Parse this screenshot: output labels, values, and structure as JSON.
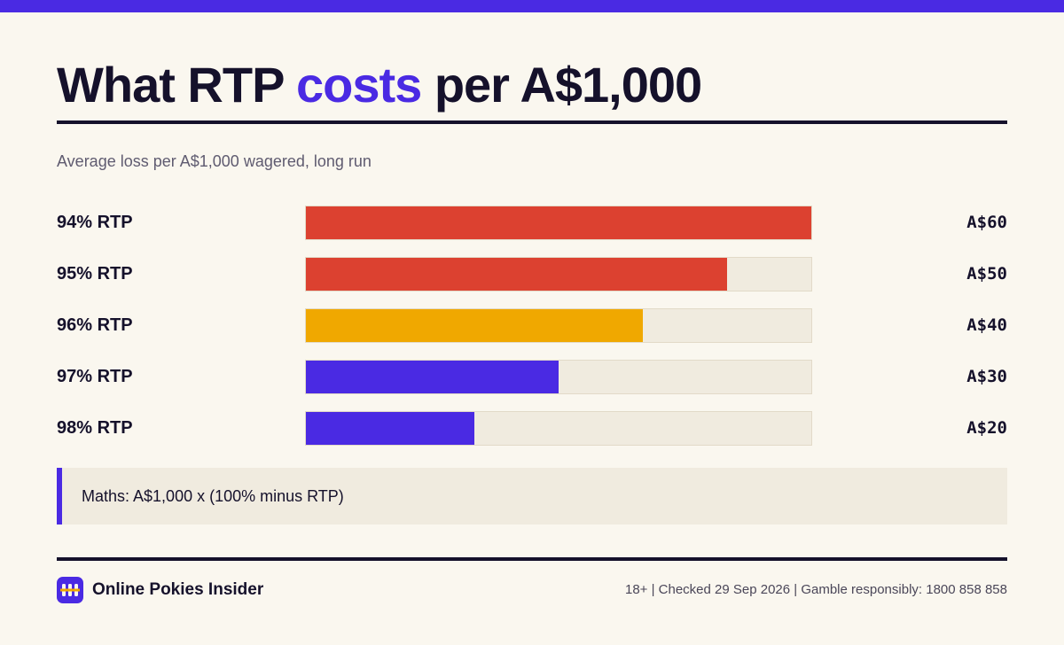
{
  "header": {
    "title_before": "What RTP ",
    "title_accent": "costs",
    "title_after": " per A$1,000",
    "subtitle": "Average loss per A$1,000 wagered, long run"
  },
  "colors": {
    "accent": "#4a2ae3",
    "red": "#dc4130",
    "amber": "#f0a800",
    "track": "#f0ebdf"
  },
  "chart_data": {
    "type": "bar",
    "orientation": "horizontal",
    "title": "What RTP costs per A$1,000",
    "subtitle": "Average loss per A$1,000 wagered, long run",
    "categories": [
      "94% RTP",
      "95% RTP",
      "96% RTP",
      "97% RTP",
      "98% RTP"
    ],
    "values": [
      60,
      50,
      40,
      30,
      20
    ],
    "value_labels": [
      "A$60",
      "A$50",
      "A$40",
      "A$30",
      "A$20"
    ],
    "bar_colors": [
      "#dc4130",
      "#dc4130",
      "#f0a800",
      "#4a2ae3",
      "#4a2ae3"
    ],
    "xlim": [
      0,
      60
    ],
    "grid": false,
    "legend": "none"
  },
  "note": {
    "text": "Maths: A$1,000 x (100% minus RTP)"
  },
  "footer": {
    "brand": "Online Pokies Insider",
    "logo_icon": "slot-reels-icon",
    "info": "18+ | Checked 29 Sep 2026 | Gamble responsibly: 1800 858 858"
  }
}
